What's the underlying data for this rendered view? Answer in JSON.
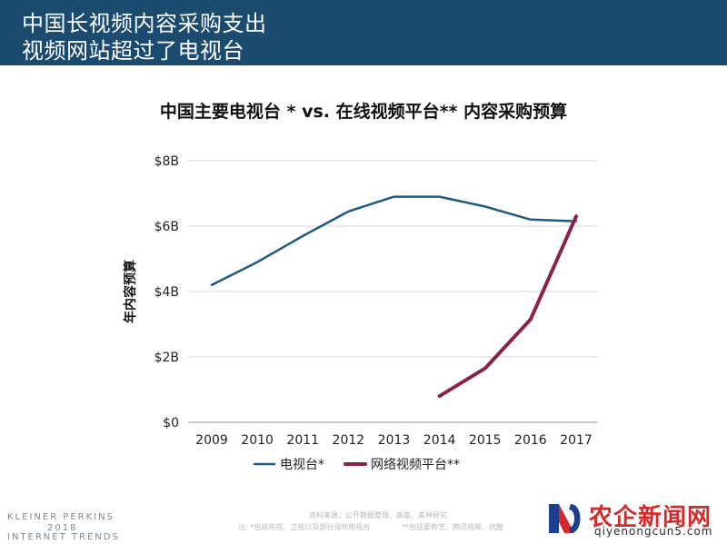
{
  "header": {
    "line1": "中国长视频内容采购支出",
    "line2": "视频网站超过了电视台",
    "background": "#1b4b6e"
  },
  "chart_data": {
    "type": "line",
    "title": "中国主要电视台 * vs. 在线视频平台** 内容采购预算",
    "xlabel": "",
    "ylabel": "年内容预算",
    "x": [
      2009,
      2010,
      2011,
      2012,
      2013,
      2014,
      2015,
      2016,
      2017
    ],
    "x_tick_labels": [
      "2009",
      "2010",
      "2011",
      "2012",
      "2013",
      "2014",
      "2015",
      "2016",
      "2017"
    ],
    "ylim": [
      0,
      8
    ],
    "y_ticks": [
      0,
      2,
      4,
      6,
      8
    ],
    "y_tick_labels": [
      "$0",
      "$2B",
      "$4B",
      "$6B",
      "$8B"
    ],
    "grid": true,
    "legend_position": "bottom",
    "series": [
      {
        "name": "电视台*",
        "color": "#1e5a80",
        "x": [
          2009,
          2010,
          2011,
          2012,
          2013,
          2014,
          2015,
          2016,
          2017
        ],
        "values": [
          4.2,
          4.9,
          5.7,
          6.45,
          6.9,
          6.9,
          6.6,
          6.2,
          6.15
        ]
      },
      {
        "name": "网络视频平台**",
        "color": "#8b2346",
        "x": [
          2014,
          2015,
          2016,
          2017
        ],
        "values": [
          0.8,
          1.65,
          3.15,
          6.3
        ]
      }
    ]
  },
  "footer": {
    "brand1": "KLEINER PERKINS",
    "brand2": "2018",
    "brand3": "INTERNET TRENDS",
    "source": "资料来源：公开数据整理、高盛、美林研究",
    "note_a": "注: *包括央视、卫视以及部分当地电视台",
    "note_b": "**包括爱奇艺、腾讯视频、优酷"
  },
  "watermark": {
    "text": "农企新闻网",
    "url": "qiyenongcun5.com"
  }
}
